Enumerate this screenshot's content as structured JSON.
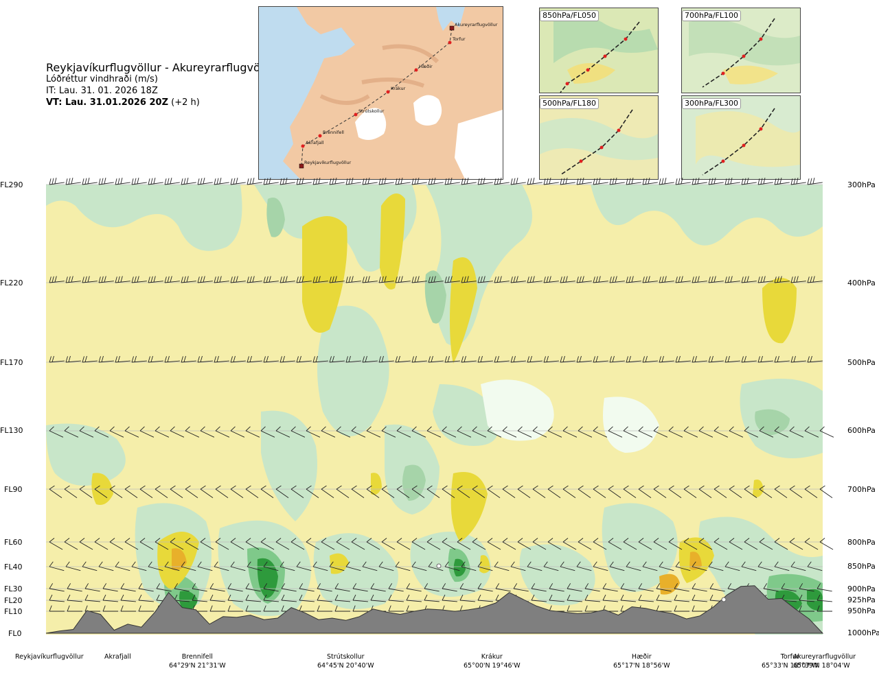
{
  "header": {
    "route": "Reykjavíkurflugvöllur - Akureyrarflugvöllur",
    "product": "Lóðréttur vindhraði (m/s)",
    "it": "IT: Lau. 31. 01. 2026 18Z",
    "vt_bold": "VT: Lau. 31.01.2026 20Z",
    "vt_lead": " (+2 h)"
  },
  "map": {
    "places": [
      {
        "name": "Akureyrarflugvöllur",
        "kind": "airport"
      },
      {
        "name": "Torfur",
        "kind": "point"
      },
      {
        "name": "Hæðir",
        "kind": "point"
      },
      {
        "name": "Krákur",
        "kind": "point"
      },
      {
        "name": "Strútskollur",
        "kind": "point"
      },
      {
        "name": "Brennifell",
        "kind": "point"
      },
      {
        "name": "Akrafjall",
        "kind": "point"
      },
      {
        "name": "Reykjavíkurflugvöllur",
        "kind": "airport"
      }
    ]
  },
  "panels": [
    {
      "label": "850hPa/FL050"
    },
    {
      "label": "700hPa/FL100"
    },
    {
      "label": "500hPa/FL180"
    },
    {
      "label": "300hPa/FL300"
    }
  ],
  "chart_data": {
    "type": "heatmap",
    "title": "Lóðréttur vindhraði (m/s)",
    "x_waypoints": [
      {
        "name": "Reykjavíkurflugvöllur",
        "coord": ""
      },
      {
        "name": "Akrafjall",
        "coord": ""
      },
      {
        "name": "Brennifell",
        "coord": "64°29'N 21°31'W"
      },
      {
        "name": "Strútskollur",
        "coord": "64°45'N 20°40'W"
      },
      {
        "name": "Krákur",
        "coord": "65°00'N 19°46'W"
      },
      {
        "name": "Hæðir",
        "coord": "65°17'N 18°56'W"
      },
      {
        "name": "Torfur",
        "coord": "65°33'N 18°07'W"
      },
      {
        "name": "Akureyrarflugvöllur",
        "coord": "65°39'N 18°04'W"
      }
    ],
    "y_levels": [
      {
        "fl": "FL290",
        "hpa": "300hPa"
      },
      {
        "fl": "FL220",
        "hpa": "400hPa"
      },
      {
        "fl": "FL170",
        "hpa": "500hPa"
      },
      {
        "fl": "FL130",
        "hpa": "600hPa"
      },
      {
        "fl": "FL90",
        "hpa": "700hPa"
      },
      {
        "fl": "FL60",
        "hpa": "800hPa"
      },
      {
        "fl": "FL40",
        "hpa": "850hPa"
      },
      {
        "fl": "FL30",
        "hpa": "900hPa"
      },
      {
        "fl": "FL20",
        "hpa": "925hPa"
      },
      {
        "fl": "FL10",
        "hpa": "950hPa"
      },
      {
        "fl": "FL0",
        "hpa": "1000hPa"
      }
    ],
    "colors": {
      "strong_up": "#2e9a3c",
      "up": "#7fc98a",
      "weak_up": "#c8e6c9",
      "near_zero": "#f2fbef",
      "weak_down": "#f5eeaa",
      "down": "#e8d93a",
      "strong_down": "#e8b02a",
      "terrain": "#7f7f7f"
    },
    "terrain_profile": [
      0,
      0.3,
      0.5,
      3,
      2.5,
      0.4,
      1.2,
      0.8,
      2.8,
      5.4,
      3.4,
      3.1,
      1.2,
      2.2,
      2.1,
      2.4,
      1.8,
      2,
      3.4,
      2.7,
      1.8,
      2,
      1.7,
      2.2,
      3.2,
      2.8,
      2.5,
      2.9,
      3.2,
      3.1,
      2.9,
      3.1,
      3.4,
      4,
      5.4,
      4.5,
      3.6,
      3,
      2.8,
      2.6,
      2.7,
      3.1,
      2.4,
      3.5,
      3.3,
      2.9,
      2.6,
      1.9,
      2.3,
      3.5,
      5.1,
      6.2,
      6.3,
      4.5,
      4.6,
      3.2,
      1.9,
      0
    ]
  },
  "colors": {
    "ocean": "#bfdcef",
    "land": "#f2c9a4",
    "route_point": "#e02020"
  }
}
